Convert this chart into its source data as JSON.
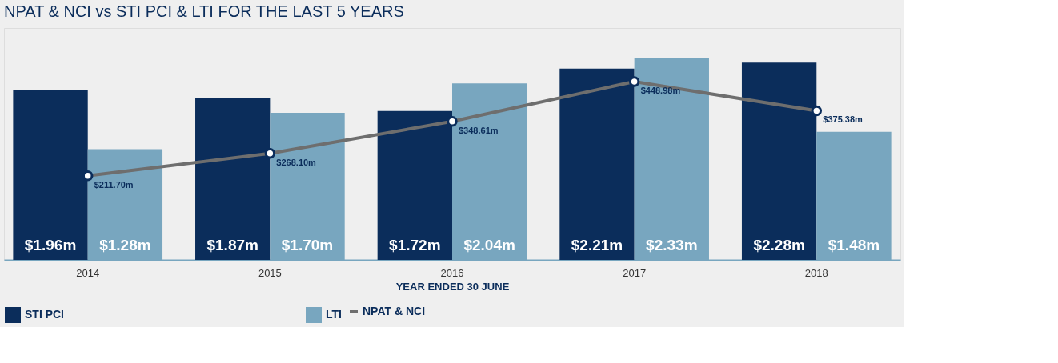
{
  "chart_data": {
    "type": "bar",
    "title": "NPAT & NCI vs STI PCI & LTI  FOR THE LAST 5 YEARS",
    "xlabel": "YEAR ENDED 30 JUNE",
    "categories": [
      "2014",
      "2015",
      "2016",
      "2017",
      "2018"
    ],
    "series": [
      {
        "name": "STI PCI",
        "color": "#0b2d5b",
        "values": [
          1.96,
          1.87,
          1.72,
          2.21,
          2.28
        ],
        "value_labels": [
          "$1.96m",
          "$1.87m",
          "$1.72m",
          "$2.21m",
          "$2.28m"
        ]
      },
      {
        "name": "LTI",
        "color": "#78a6bf",
        "values": [
          1.28,
          1.7,
          2.04,
          2.33,
          1.48
        ],
        "value_labels": [
          "$1.28m",
          "$1.70m",
          "$2.04m",
          "$2.33m",
          "$1.48m"
        ]
      },
      {
        "name": "NPAT & NCI",
        "type": "line",
        "axis": "y2",
        "color": "#6e6e6e",
        "values": [
          211.7,
          268.1,
          348.61,
          448.98,
          375.38
        ],
        "value_labels": [
          "$211.70m",
          "$268.10m",
          "$348.61m",
          "$448.98m",
          "$375.38m"
        ]
      }
    ],
    "marker": "circle",
    "line_style": "solid",
    "grid": false,
    "legend": "bottom"
  }
}
